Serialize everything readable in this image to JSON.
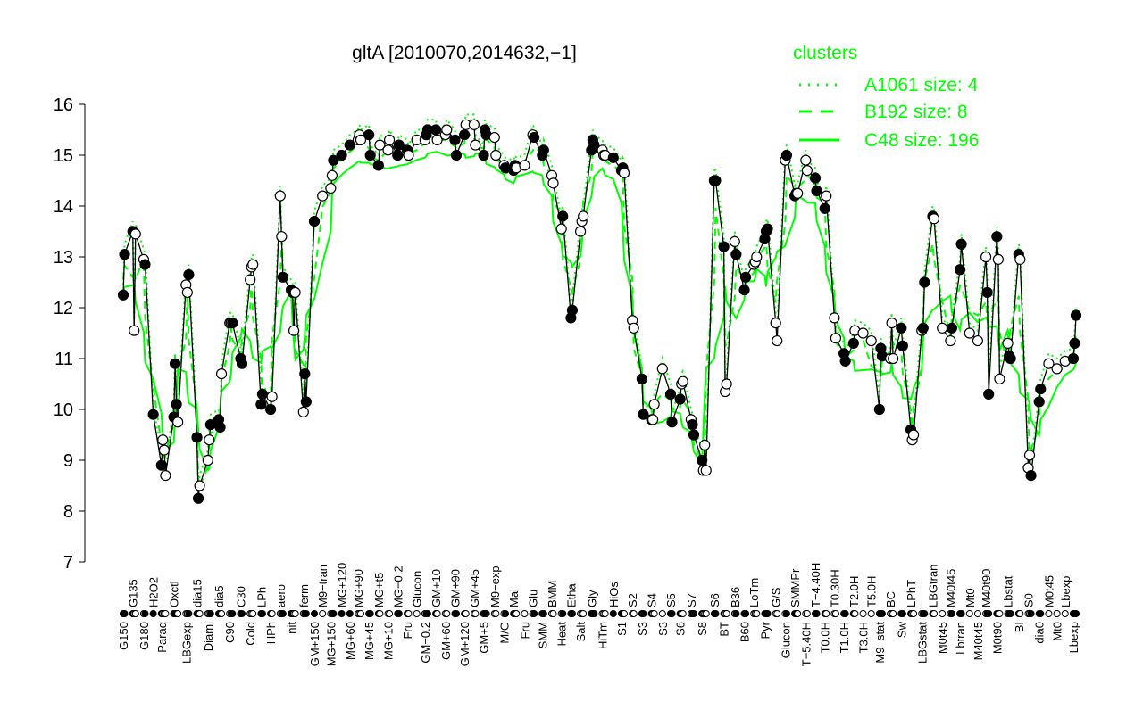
{
  "chart_data": {
    "type": "line",
    "title": "gltA [2010070,2014632,−1]",
    "ylim": [
      7,
      16
    ],
    "yticks": [
      7,
      8,
      9,
      10,
      11,
      12,
      13,
      14,
      15,
      16
    ],
    "grid": false,
    "legend": {
      "title": "clusters",
      "placement": "top-right",
      "entries": [
        {
          "label": "A1061 size: 4",
          "style": "dotted"
        },
        {
          "label": "B192 size: 8",
          "style": "dashed"
        },
        {
          "label": "C48 size: 196",
          "style": "solid"
        }
      ],
      "color": "#00ff00"
    },
    "colors": {
      "points": "#000000",
      "clusters": "#00ff00"
    },
    "points": [
      [
        "G150",
        12.25
      ],
      [
        "",
        13.05
      ],
      [
        "G135",
        13.5
      ],
      [
        "",
        11.55
      ],
      [
        "",
        13.45
      ],
      [
        "G180",
        12.95
      ],
      [
        "",
        12.85
      ],
      [
        "H2O2",
        9.9
      ],
      [
        "Paraq",
        8.9
      ],
      [
        "",
        9.4
      ],
      [
        "",
        9.2
      ],
      [
        "",
        8.7
      ],
      [
        "Oxctl",
        9.85
      ],
      [
        "",
        10.9
      ],
      [
        "",
        10.1
      ],
      [
        "",
        9.75
      ],
      [
        "LBGexp",
        12.45
      ],
      [
        "",
        12.3
      ],
      [
        "",
        12.65
      ],
      [
        "dia15",
        9.45
      ],
      [
        "",
        8.25
      ],
      [
        "",
        8.5
      ],
      [
        "Diami",
        9.0
      ],
      [
        "",
        9.4
      ],
      [
        "",
        9.7
      ],
      [
        "dia5",
        9.8
      ],
      [
        "",
        9.65
      ],
      [
        "",
        10.7
      ],
      [
        "C90",
        11.7
      ],
      [
        "",
        11.7
      ],
      [
        "",
        11.7
      ],
      [
        "C30",
        11.0
      ],
      [
        "",
        10.9
      ],
      [
        "Cold",
        12.55
      ],
      [
        "",
        12.8
      ],
      [
        "",
        12.85
      ],
      [
        "LPh",
        10.1
      ],
      [
        "",
        10.3
      ],
      [
        "HPh",
        10.0
      ],
      [
        "",
        10.25
      ],
      [
        "aero",
        14.2
      ],
      [
        "",
        13.4
      ],
      [
        "",
        12.6
      ],
      [
        "nit",
        12.35
      ],
      [
        "",
        12.3
      ],
      [
        "",
        11.55
      ],
      [
        "",
        12.3
      ],
      [
        "ferm",
        9.95
      ],
      [
        "",
        10.7
      ],
      [
        "",
        10.15
      ],
      [
        "GM+150",
        13.7
      ],
      [
        "M9−tran",
        14.2
      ],
      [
        "MG+150",
        14.35
      ],
      [
        "",
        14.6
      ],
      [
        "",
        14.9
      ],
      [
        "MG+120",
        15.0
      ],
      [
        "MG+60",
        15.2
      ],
      [
        "MG+90",
        15.3
      ],
      [
        "",
        15.4
      ],
      [
        "",
        15.3
      ],
      [
        "MG+45",
        15.4
      ],
      [
        "",
        15.0
      ],
      [
        "MG+t5",
        14.8
      ],
      [
        "",
        15.2
      ],
      [
        "MG+10",
        15.1
      ],
      [
        "",
        15.3
      ],
      [
        "MG−0.2",
        15.0
      ],
      [
        "",
        15.2
      ],
      [
        "Fru",
        15.1
      ],
      [
        "",
        15.0
      ],
      [
        "Glucon",
        15.3
      ],
      [
        "GM−0.2",
        15.3
      ],
      [
        "",
        15.4
      ],
      [
        "",
        15.5
      ],
      [
        "GM+10",
        15.5
      ],
      [
        "",
        15.3
      ],
      [
        "GM+60",
        15.4
      ],
      [
        "",
        15.5
      ],
      [
        "GM+90",
        15.3
      ],
      [
        "",
        15.0
      ],
      [
        "GM+120",
        15.4
      ],
      [
        "",
        15.6
      ],
      [
        "GM+45",
        15.6
      ],
      [
        "",
        15.2
      ],
      [
        "GM+5",
        15.0
      ],
      [
        "",
        15.5
      ],
      [
        "",
        15.4
      ],
      [
        "M9−exp",
        15.35
      ],
      [
        "",
        15.0
      ],
      [
        "M/G",
        14.8
      ],
      [
        "",
        14.75
      ],
      [
        "Mal",
        14.7
      ],
      [
        "",
        14.8
      ],
      [
        "",
        14.75
      ],
      [
        "Fru",
        14.8
      ],
      [
        "Glu",
        15.4
      ],
      [
        "",
        15.35
      ],
      [
        "SMM",
        15.0
      ],
      [
        "",
        15.1
      ],
      [
        "BMM",
        14.6
      ],
      [
        "",
        14.45
      ],
      [
        "Heat",
        13.55
      ],
      [
        "",
        13.8
      ],
      [
        "Etha",
        11.8
      ],
      [
        "",
        11.95
      ],
      [
        "Salt",
        13.5
      ],
      [
        "",
        13.7
      ],
      [
        "",
        13.8
      ],
      [
        "Gly",
        15.1
      ],
      [
        "",
        15.3
      ],
      [
        "",
        15.2
      ],
      [
        "HiTm",
        15.1
      ],
      [
        "",
        15.0
      ],
      [
        "",
        15.0
      ],
      [
        "HiOs",
        14.95
      ],
      [
        "S1",
        14.7
      ],
      [
        "",
        14.75
      ],
      [
        "",
        14.65
      ],
      [
        "S2",
        11.75
      ],
      [
        "",
        11.6
      ],
      [
        "S3",
        10.6
      ],
      [
        "",
        9.9
      ],
      [
        "S4",
        9.8
      ],
      [
        "",
        9.8
      ],
      [
        "",
        10.1
      ],
      [
        "S3",
        10.8
      ],
      [
        "S5",
        10.3
      ],
      [
        "",
        9.75
      ],
      [
        "S6",
        10.2
      ],
      [
        "",
        10.5
      ],
      [
        "",
        10.55
      ],
      [
        "S7",
        9.8
      ],
      [
        "",
        9.7
      ],
      [
        "",
        9.5
      ],
      [
        "S8",
        9.0
      ],
      [
        "",
        8.8
      ],
      [
        "",
        9.3
      ],
      [
        "",
        8.8
      ],
      [
        "S6",
        14.5
      ],
      [
        "",
        14.5
      ],
      [
        "BT",
        13.2
      ],
      [
        "",
        10.35
      ],
      [
        "",
        10.5
      ],
      [
        "B36",
        13.3
      ],
      [
        "",
        13.05
      ],
      [
        "B60",
        12.35
      ],
      [
        "",
        12.6
      ],
      [
        "LoTm",
        12.85
      ],
      [
        "",
        12.9
      ],
      [
        "",
        13.0
      ],
      [
        "Pyr",
        13.35
      ],
      [
        "",
        13.5
      ],
      [
        "",
        13.55
      ],
      [
        "G/S",
        11.7
      ],
      [
        "",
        11.35
      ],
      [
        "Glucon",
        14.9
      ],
      [
        "",
        15.0
      ],
      [
        "SMMPr",
        14.2
      ],
      [
        "",
        14.25
      ],
      [
        "",
        14.25
      ],
      [
        "T−5.40H",
        14.9
      ],
      [
        "",
        14.7
      ],
      [
        "T−4.40H",
        14.55
      ],
      [
        "",
        14.3
      ],
      [
        "T0.0H",
        13.95
      ],
      [
        "",
        14.2
      ],
      [
        "T0.30H",
        11.8
      ],
      [
        "",
        11.4
      ],
      [
        "T1.0H",
        11.1
      ],
      [
        "",
        10.95
      ],
      [
        "T2.0H",
        11.3
      ],
      [
        "",
        11.55
      ],
      [
        "T3.0H",
        11.5
      ],
      [
        "T5.0H",
        11.35
      ],
      [
        "M9−stat",
        10.0
      ],
      [
        "",
        11.2
      ],
      [
        "",
        11.05
      ],
      [
        "BC",
        11.0
      ],
      [
        "",
        11.7
      ],
      [
        "",
        11.0
      ],
      [
        "Sw",
        11.6
      ],
      [
        "",
        11.25
      ],
      [
        "LPhT",
        9.6
      ],
      [
        "",
        9.4
      ],
      [
        "",
        9.5
      ],
      [
        "LBGstat",
        11.55
      ],
      [
        "",
        11.6
      ],
      [
        "",
        12.5
      ],
      [
        "LBGtran",
        13.8
      ],
      [
        "",
        13.75
      ],
      [
        "M0t45",
        11.6
      ],
      [
        "M40t45",
        11.35
      ],
      [
        "",
        11.6
      ],
      [
        "Lbtran",
        12.75
      ],
      [
        "",
        13.25
      ],
      [
        "Mt0",
        11.5
      ],
      [
        "M40t45",
        11.35
      ],
      [
        "M40t90",
        13.0
      ],
      [
        "",
        12.3
      ],
      [
        "",
        10.3
      ],
      [
        "M0t90",
        13.4
      ],
      [
        "",
        12.95
      ],
      [
        "",
        10.6
      ],
      [
        "Lbstat",
        11.3
      ],
      [
        "",
        11.05
      ],
      [
        "",
        11.0
      ],
      [
        "BI",
        13.05
      ],
      [
        "",
        12.95
      ],
      [
        "S0",
        8.85
      ],
      [
        "",
        9.1
      ],
      [
        "",
        8.7
      ],
      [
        "dia0",
        10.15
      ],
      [
        "",
        10.4
      ],
      [
        "M0t45",
        10.9
      ],
      [
        "Mt0",
        10.8
      ],
      [
        "Lbexp",
        10.95
      ],
      [
        "Lbexp",
        11.0
      ],
      [
        "",
        11.3
      ],
      [
        "",
        11.85
      ]
    ]
  }
}
